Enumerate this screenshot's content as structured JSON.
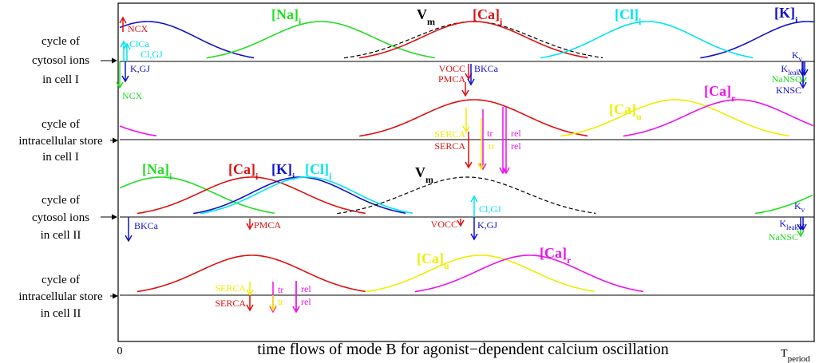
{
  "panels": [
    {
      "label_lines": [
        "cycle of",
        "cytosol ions",
        "in cell I"
      ]
    },
    {
      "label_lines": [
        "cycle of",
        "intracellular store",
        "in cell I"
      ]
    },
    {
      "label_lines": [
        "cycle of",
        "cytosol ions",
        "in cell II"
      ]
    },
    {
      "label_lines": [
        "cycle of",
        "intracellular store",
        "in cell II"
      ]
    }
  ],
  "axis": {
    "origin_label": "0",
    "caption": "time flows of mode B for agonist−dependent calcium oscillation",
    "end_label": "T",
    "end_label_sub": "period"
  },
  "colors": {
    "Na": "#22dd22",
    "Ca": "#dd1111",
    "K": "#1111cc",
    "Cl": "#00e5ee",
    "Cau": "#eeee00",
    "Car": "#ee11ee",
    "Vm": "#000000"
  },
  "curves": {
    "p1": [
      {
        "species": "K",
        "main": "[K]",
        "sub": "i",
        "peaks": [
          0.04,
          0.99
        ]
      },
      {
        "species": "Na",
        "main": "[Na]",
        "sub": "i",
        "peaks": [
          0.29
        ]
      },
      {
        "species": "Vm",
        "main": "V",
        "sub": "m",
        "peaks": [
          0.51
        ],
        "dashed": true
      },
      {
        "species": "Ca",
        "main": "[Ca]",
        "sub": "i",
        "peaks": [
          0.51
        ]
      },
      {
        "species": "Cl",
        "main": "[Cl]",
        "sub": "i",
        "peaks": [
          0.76
        ]
      }
    ],
    "p2": [
      {
        "species": "Ca",
        "peaks": [
          0.51
        ]
      },
      {
        "species": "Cau",
        "main": "[Ca]",
        "sub": "u",
        "peaks": [
          0.8
        ]
      },
      {
        "species": "Car",
        "main": "[Ca]",
        "sub": "r",
        "peaks": [
          0.89,
          -0.11
        ]
      }
    ],
    "p3": [
      {
        "species": "Na",
        "main": "[Na]",
        "sub": "i",
        "peaks": [
          0.06,
          1.08
        ]
      },
      {
        "species": "Ca",
        "main": "[Ca]",
        "sub": "i",
        "peaks": [
          0.19
        ]
      },
      {
        "species": "K",
        "main": "[K]",
        "sub": "i",
        "peaks": [
          0.26
        ]
      },
      {
        "species": "Cl",
        "main": "[Cl]",
        "sub": "i",
        "peaks": [
          0.27
        ]
      },
      {
        "species": "Vm",
        "main": "V",
        "sub": "m",
        "peaks": [
          0.5
        ],
        "dashed": true
      }
    ],
    "p4": [
      {
        "species": "Ca",
        "peaks": [
          0.19
        ]
      },
      {
        "species": "Cau",
        "main": "[Ca]",
        "sub": "u",
        "peaks": [
          0.52
        ]
      },
      {
        "species": "Car",
        "main": "[Ca]",
        "sub": "r",
        "peaks": [
          0.59
        ]
      }
    ]
  },
  "fluxes": {
    "p1": [
      {
        "species": "Ca",
        "label": "NCX",
        "sub": ""
      },
      {
        "species": "Cl",
        "label": "ClCa",
        "sub": ""
      },
      {
        "species": "Cl",
        "label": "Cl,GJ",
        "sub": ""
      },
      {
        "species": "K",
        "label": "K,GJ",
        "sub": ""
      },
      {
        "species": "Na",
        "label": "NCX",
        "sub": ""
      },
      {
        "species": "Ca",
        "label": "VOCC",
        "sub": ""
      },
      {
        "species": "Ca",
        "label": "PMCA",
        "sub": ""
      },
      {
        "species": "K",
        "label": "BKCa",
        "sub": ""
      },
      {
        "species": "K",
        "label": "K",
        "sub": "v"
      },
      {
        "species": "K",
        "label": "K",
        "sub": "leak"
      },
      {
        "species": "Na",
        "label": "NaNSC",
        "sub": ""
      },
      {
        "species": "K",
        "label": "KNSC",
        "sub": ""
      }
    ],
    "p2": [
      {
        "species": "Cau",
        "label": "SERCA",
        "sub": ""
      },
      {
        "species": "Ca",
        "label": "SERCA",
        "sub": ""
      },
      {
        "species": "Car",
        "label": "tr",
        "sub": ""
      },
      {
        "species": "Cau",
        "label": "tr",
        "sub": ""
      },
      {
        "species": "Car",
        "label": "rel",
        "sub": ""
      },
      {
        "species": "Car",
        "label": "rel",
        "sub": ""
      }
    ],
    "p3": [
      {
        "species": "K",
        "label": "BKCa",
        "sub": ""
      },
      {
        "species": "Ca",
        "label": "PMCA",
        "sub": ""
      },
      {
        "species": "Ca",
        "label": "VOCC",
        "sub": ""
      },
      {
        "species": "Cl",
        "label": "Cl,GJ",
        "sub": ""
      },
      {
        "species": "K",
        "label": "K,GJ",
        "sub": ""
      },
      {
        "species": "K",
        "label": "K",
        "sub": "v"
      },
      {
        "species": "K",
        "label": "K",
        "sub": "leak"
      },
      {
        "species": "Na",
        "label": "NaNSC",
        "sub": ""
      }
    ],
    "p4": [
      {
        "species": "Cau",
        "label": "SERCA",
        "sub": ""
      },
      {
        "species": "Ca",
        "label": "SERCA",
        "sub": ""
      },
      {
        "species": "Car",
        "label": "tr",
        "sub": ""
      },
      {
        "species": "Cau",
        "label": "tr",
        "sub": ""
      },
      {
        "species": "Car",
        "label": "rel",
        "sub": ""
      },
      {
        "species": "Car",
        "label": "rel",
        "sub": ""
      }
    ]
  }
}
